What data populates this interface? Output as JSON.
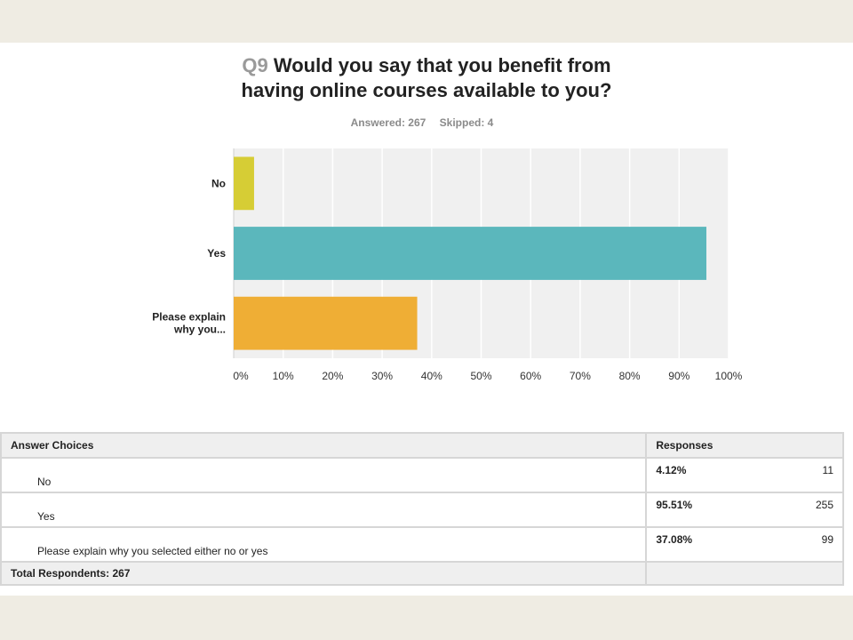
{
  "question": {
    "number": "Q9",
    "line1": "Would you say that you benefit from",
    "line2": "having online courses available to you?"
  },
  "stats": {
    "answered": "Answered: 267",
    "skipped": "Skipped: 4"
  },
  "chart_data": {
    "type": "bar",
    "orientation": "horizontal",
    "categories": [
      "No",
      "Yes",
      "Please explain why you..."
    ],
    "category_labels": [
      [
        "No"
      ],
      [
        "Yes"
      ],
      [
        "Please explain",
        "why you..."
      ]
    ],
    "values": [
      4.12,
      95.51,
      37.08
    ],
    "colors": [
      "#d6cd35",
      "#5bb7bc",
      "#efae35"
    ],
    "xlim": [
      0,
      100
    ],
    "xticks": [
      "0%",
      "10%",
      "20%",
      "30%",
      "40%",
      "50%",
      "60%",
      "70%",
      "80%",
      "90%",
      "100%"
    ],
    "grid": true,
    "background": "#f0f0f0"
  },
  "table": {
    "headers": {
      "choice": "Answer Choices",
      "responses": "Responses"
    },
    "rows": [
      {
        "choice": "No",
        "percent": "4.12%",
        "count": "11"
      },
      {
        "choice": "Yes",
        "percent": "95.51%",
        "count": "255"
      },
      {
        "choice": "Please explain why you selected either no or yes",
        "percent": "37.08%",
        "count": "99"
      }
    ],
    "total": "Total Respondents: 267"
  }
}
